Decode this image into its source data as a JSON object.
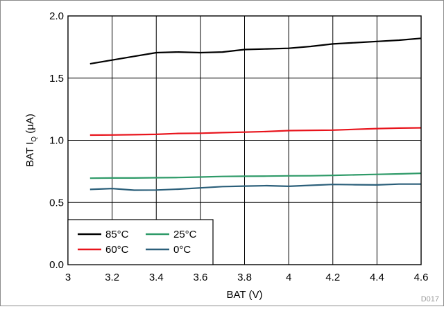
{
  "chart_data": {
    "type": "line",
    "xlabel": "BAT (V)",
    "ylabel_main": "BAT I",
    "ylabel_sub": "Q",
    "ylabel_unit": " (µA)",
    "xlim": [
      3,
      4.6
    ],
    "ylim": [
      0,
      2
    ],
    "x_ticks": [
      3,
      3.2,
      3.4,
      3.6,
      3.8,
      4,
      4.2,
      4.4,
      4.6
    ],
    "x_tick_labels": [
      "3",
      "3.2",
      "3.4",
      "3.6",
      "3.8",
      "4",
      "4.2",
      "4.4",
      "4.6"
    ],
    "y_ticks": [
      0,
      0.5,
      1,
      1.5,
      2
    ],
    "y_tick_labels": [
      "0.0",
      "0.5",
      "1.0",
      "1.5",
      "2.0"
    ],
    "x_grid": [
      3.2,
      3.4,
      3.6,
      3.8,
      4,
      4.2,
      4.4
    ],
    "grid": true,
    "legend_position": "bottom-left",
    "figure_id": "D017",
    "series": [
      {
        "name": "85°C",
        "color": "#000000",
        "x": [
          3.1,
          3.2,
          3.3,
          3.4,
          3.5,
          3.6,
          3.7,
          3.8,
          3.9,
          4.0,
          4.1,
          4.2,
          4.3,
          4.4,
          4.5,
          4.6
        ],
        "y": [
          1.615,
          1.645,
          1.675,
          1.705,
          1.71,
          1.705,
          1.71,
          1.73,
          1.735,
          1.74,
          1.755,
          1.775,
          1.785,
          1.795,
          1.805,
          1.82
        ]
      },
      {
        "name": "60°C",
        "color": "#e8141c",
        "x": [
          3.1,
          3.2,
          3.3,
          3.4,
          3.5,
          3.6,
          3.7,
          3.8,
          3.9,
          4.0,
          4.1,
          4.2,
          4.3,
          4.4,
          4.5,
          4.6
        ],
        "y": [
          1.042,
          1.043,
          1.045,
          1.048,
          1.055,
          1.057,
          1.062,
          1.066,
          1.07,
          1.078,
          1.08,
          1.082,
          1.088,
          1.094,
          1.098,
          1.1
        ]
      },
      {
        "name": "25°C",
        "color": "#2e9a68",
        "x": [
          3.1,
          3.2,
          3.3,
          3.4,
          3.5,
          3.6,
          3.7,
          3.8,
          3.9,
          4.0,
          4.1,
          4.2,
          4.3,
          4.4,
          4.5,
          4.6
        ],
        "y": [
          0.695,
          0.697,
          0.697,
          0.699,
          0.701,
          0.705,
          0.709,
          0.711,
          0.712,
          0.714,
          0.715,
          0.718,
          0.722,
          0.726,
          0.73,
          0.735
        ]
      },
      {
        "name": "0°C",
        "color": "#2b5f7a",
        "x": [
          3.1,
          3.2,
          3.3,
          3.4,
          3.5,
          3.6,
          3.7,
          3.8,
          3.9,
          4.0,
          4.1,
          4.2,
          4.3,
          4.4,
          4.5,
          4.6
        ],
        "y": [
          0.605,
          0.612,
          0.599,
          0.6,
          0.607,
          0.617,
          0.628,
          0.632,
          0.635,
          0.63,
          0.638,
          0.645,
          0.643,
          0.641,
          0.648,
          0.648
        ]
      }
    ],
    "legend_order": [
      0,
      2,
      1,
      3
    ]
  }
}
